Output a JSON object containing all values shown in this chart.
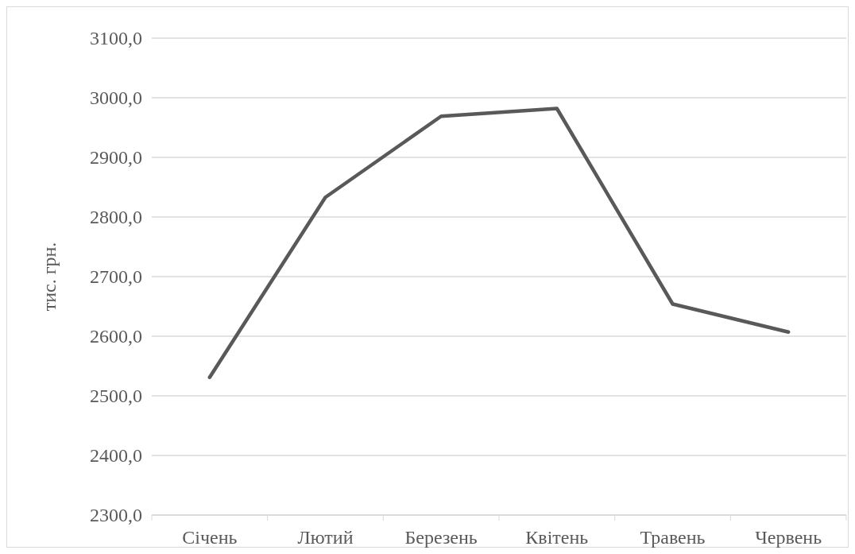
{
  "chart_data": {
    "type": "line",
    "ylabel": "тис. грн.",
    "categories": [
      "Січень",
      "Лютий",
      "Березень",
      "Квітень",
      "Травень",
      "Червень"
    ],
    "series": [
      {
        "color": "#595959",
        "values": [
          2531,
          2833,
          2969,
          2982,
          2654,
          2607
        ]
      }
    ],
    "ylim": [
      2300,
      3100
    ],
    "yticks": [
      {
        "value": 2300,
        "label": "2300,0"
      },
      {
        "value": 2400,
        "label": "2400,0"
      },
      {
        "value": 2500,
        "label": "2500,0"
      },
      {
        "value": 2600,
        "label": "2600,0"
      },
      {
        "value": 2700,
        "label": "2700,0"
      },
      {
        "value": 2800,
        "label": "2800,0"
      },
      {
        "value": 2900,
        "label": "2900,0"
      },
      {
        "value": 3000,
        "label": "3000,0"
      },
      {
        "value": 3100,
        "label": "3100,0"
      }
    ],
    "grid": "y",
    "marker": "none",
    "line_style": "solid"
  }
}
